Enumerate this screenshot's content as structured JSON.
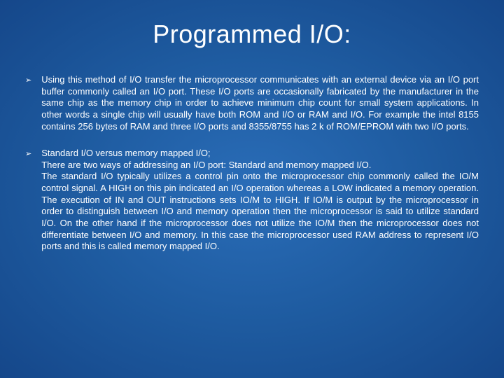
{
  "slide": {
    "title": "Programmed I/O:",
    "background_gradient": [
      "#2a6db8",
      "#1e5ba0",
      "#15478a"
    ],
    "text_color": "#ffffff",
    "title_fontsize": 36,
    "body_fontsize": 13,
    "bullet_glyph": "➢",
    "bullets": [
      {
        "text": "Using this method of I/O transfer the microprocessor communicates with an external device via an I/O port buffer commonly called an I/O port. These I/O ports are occasionally fabricated by the manufacturer in the same chip as the memory chip in order to achieve minimum chip count for small system applications. In other words a single chip will usually have both ROM and I/O or RAM and I/O. For example the intel 8155 contains 256 bytes of RAM and three I/O ports and 8355/8755 has 2 k of ROM/EPROM with two I/O ports."
      },
      {
        "line1": "Standard I/O versus memory mapped I/O;",
        "line2": "There are two ways of addressing an I/O port: Standard and memory mapped I/O.",
        "line3": "The standard I/O typically utilizes a control pin onto the microprocessor chip commonly called the IO/M control signal. A HIGH on this pin indicated an I/O operation whereas a LOW indicated a memory operation. The execution of IN and OUT instructions sets IO/M to HIGH. If IO/M is output by the microprocessor in order to distinguish between I/O and memory operation then the microprocessor is said to utilize standard I/O. On the other hand if the microprocessor does not utilize the IO/M then the microprocessor does not differentiate between I/O and memory. In this case the microprocessor used RAM address to represent I/O ports and this is called memory mapped I/O."
      }
    ]
  }
}
